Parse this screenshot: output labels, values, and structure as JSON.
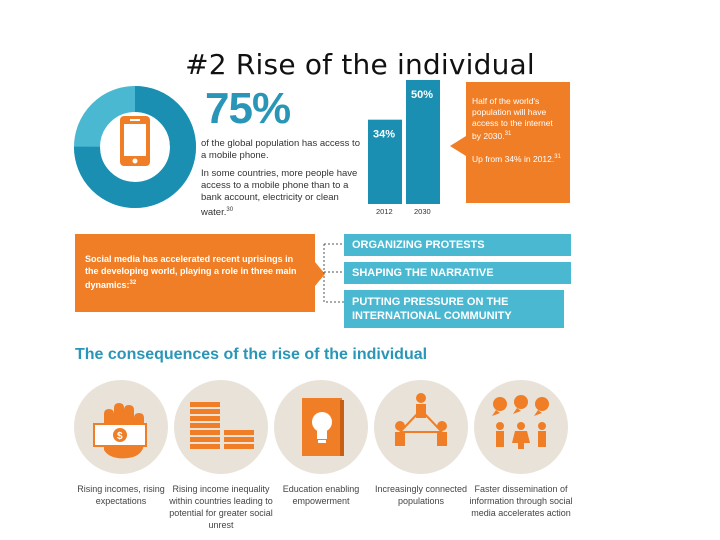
{
  "slide": {
    "title": "#2 Rise of the individual"
  },
  "mobile": {
    "percent": "75%",
    "line1": "of the global population has access to a mobile phone.",
    "line2": "In some countries, more people have access to a mobile phone than to a bank account, electricity or clean water.",
    "line2_note": "30",
    "donut_fraction": 0.75,
    "colors": {
      "primary": "#1a8fb2",
      "secondary": "#4ab8d1",
      "icon": "#f07e26"
    },
    "icon": "mobile-phone-icon"
  },
  "internet_chart": {
    "chart_data": {
      "type": "bar",
      "categories": [
        "2012",
        "2030"
      ],
      "values": [
        34,
        50
      ],
      "value_labels": [
        "34%",
        "50%"
      ],
      "title": "",
      "xlabel": "",
      "ylabel": ""
    },
    "callout_line1": "Half of the world's population will have access to the internet by 2030.",
    "callout_note1": "31",
    "callout_line2": "Up from 34% in 2012.",
    "callout_note2": "31"
  },
  "social_media": {
    "text": "Social media has accelerated recent uprisings in the developing world, playing a role in three main dynamics:",
    "note": "32",
    "dynamics": [
      {
        "label": "ORGANIZING PROTESTS"
      },
      {
        "label": "SHAPING THE NARRATIVE"
      },
      {
        "label": "PUTTING PRESSURE ON THE INTERNATIONAL COMMUNITY"
      }
    ]
  },
  "consequences": {
    "title": "The consequences of the rise of the individual",
    "items": [
      {
        "caption": "Rising incomes, rising expectations",
        "icon": "hand-money-icon"
      },
      {
        "caption": "Rising income inequality within countries leading to potential for greater social unrest",
        "icon": "money-stacks-icon"
      },
      {
        "caption": "Education enabling empowerment",
        "icon": "book-lightbulb-icon"
      },
      {
        "caption": "Increasingly connected populations",
        "icon": "connected-people-icon"
      },
      {
        "caption": "Faster dissemination of information through social media accelerates action",
        "icon": "speech-bubbles-people-icon"
      }
    ]
  }
}
